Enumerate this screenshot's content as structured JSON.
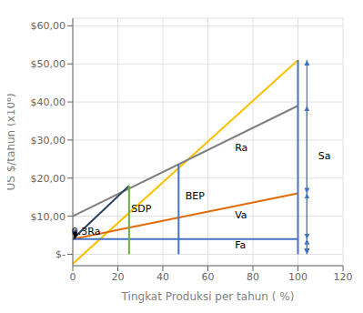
{
  "chart_data": {
    "type": "line",
    "xlabel": "Tingkat Produksi per tahun ( %)",
    "ylabel": "US $/tahun (x10⁶)",
    "xlim": [
      0,
      120
    ],
    "ylim": [
      -3000,
      62000
    ],
    "xticks": [
      0,
      20,
      40,
      60,
      80,
      100,
      120
    ],
    "yticks": [
      {
        "value": 0,
        "label": "$-  "
      },
      {
        "value": 10000,
        "label": "$10,00"
      },
      {
        "value": 20000,
        "label": "$20,00"
      },
      {
        "value": 30000,
        "label": "$30,00"
      },
      {
        "value": 40000,
        "label": "$40,00"
      },
      {
        "value": 50000,
        "label": "$50,00"
      },
      {
        "value": 60000,
        "label": "$60,00"
      }
    ],
    "grid": true,
    "series": [
      {
        "color": "#FFC000",
        "x": [
          0,
          100
        ],
        "values": [
          -2500,
          51000
        ]
      },
      {
        "color": "#808080",
        "x": [
          0,
          100
        ],
        "values": [
          10000,
          39000
        ]
      },
      {
        "color": "#E26B0A",
        "x": [
          0,
          100
        ],
        "values": [
          4000,
          16000
        ]
      },
      {
        "color": "#4472C4",
        "x": [
          0,
          100
        ],
        "values": [
          4000,
          4000
        ]
      },
      {
        "color": "#243F60",
        "x": [
          0,
          25
        ],
        "values": [
          4000,
          18000
        ]
      },
      {
        "color": "#70AD47",
        "x": [
          25,
          25
        ],
        "values": [
          0,
          18000
        ]
      },
      {
        "color": "#4472C4",
        "x": [
          47,
          47
        ],
        "values": [
          0,
          23700
        ]
      },
      {
        "color": "#4472C4",
        "x": [
          100,
          100
        ],
        "values": [
          0,
          51000
        ]
      }
    ],
    "arrows": [
      {
        "color": "#4472C4",
        "x": 104,
        "from": 0,
        "to": 51000
      },
      {
        "color": "#4472C4",
        "x": 104,
        "from": 16000,
        "to": 39000
      },
      {
        "color": "#4472C4",
        "x": 104,
        "from": 4000,
        "to": 16000
      },
      {
        "color": "#4472C4",
        "x": 104,
        "from": 100,
        "to": 4000
      },
      {
        "color": "#000000",
        "x": 1,
        "from": 4000,
        "to": 6500
      }
    ],
    "annotations": [
      {
        "text": "Ra",
        "x": 72,
        "y": 27000
      },
      {
        "text": "Sa",
        "x": 109,
        "y": 25000
      },
      {
        "text": "BEP",
        "x": 50,
        "y": 14500
      },
      {
        "text": "SDP",
        "x": 26,
        "y": 11000
      },
      {
        "text": "Va",
        "x": 72,
        "y": 9500
      },
      {
        "text": "Fa",
        "x": 72,
        "y": 1500
      },
      {
        "text": "0.3Ra",
        "x": -0.5,
        "y": 5200
      }
    ]
  }
}
